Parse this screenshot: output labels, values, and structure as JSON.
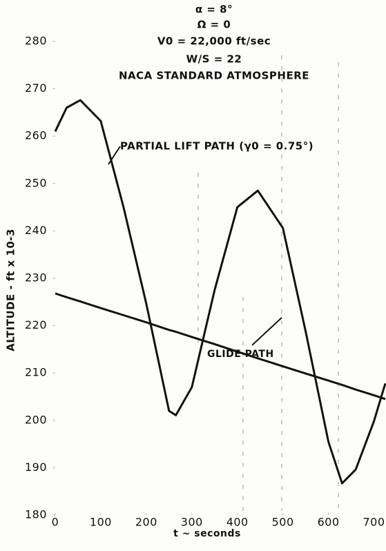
{
  "chart_data": {
    "type": "line",
    "annotations": [
      "α = 8°",
      "Ω = 0",
      "V0 = 22,000 ft/sec",
      "W/S = 22",
      "NACA STANDARD ATMOSPHERE",
      "PARTIAL LIFT PATH (γ0 = 0.75°)",
      "GLIDE PATH"
    ],
    "x_label": "t ~ seconds",
    "y_label": "ALTITUDE - ft x 10-3",
    "x": [
      0,
      25,
      55,
      100,
      150,
      200,
      250,
      265,
      300,
      350,
      400,
      445,
      500,
      550,
      600,
      630,
      660,
      700,
      725
    ],
    "series": [
      {
        "name": "PARTIAL LIFT PATH",
        "color": "#111111",
        "values": [
          261,
          266,
          267.6,
          263.2,
          245,
          224.6,
          202,
          201.1,
          207,
          227.5,
          245,
          248.5,
          240.6,
          218.8,
          195.5,
          186.7,
          189.6,
          199.8,
          207.8
        ]
      },
      {
        "name": "GLIDE PATH",
        "color": "#111111",
        "values": [
          226.8,
          226,
          225.1,
          223.7,
          222.2,
          220.7,
          219.1,
          218.7,
          217.6,
          216.1,
          214.5,
          213.1,
          211.4,
          209.9,
          208.4,
          207.5,
          206.5,
          205.3,
          204.5
        ]
      }
    ],
    "xlim": [
      0,
      725
    ],
    "ylim": [
      180,
      280
    ],
    "xticks": [
      0,
      100,
      200,
      300,
      400,
      500,
      600,
      700
    ],
    "yticks": [
      180,
      190,
      200,
      210,
      220,
      230,
      240,
      250,
      260,
      270,
      280
    ],
    "grid": false
  }
}
